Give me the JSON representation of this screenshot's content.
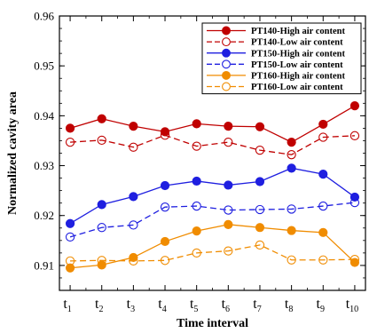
{
  "chart_data": {
    "type": "line",
    "xlabel": "Time interval",
    "ylabel": "Normalized cavity area",
    "ylim": [
      0.905,
      0.96
    ],
    "yticks": [
      "0.91",
      "0.92",
      "0.93",
      "0.94",
      "0.95",
      "0.96"
    ],
    "categories": [
      {
        "base": "t",
        "sub": "1"
      },
      {
        "base": "t",
        "sub": "2"
      },
      {
        "base": "t",
        "sub": "3"
      },
      {
        "base": "t",
        "sub": "4"
      },
      {
        "base": "t",
        "sub": "5"
      },
      {
        "base": "t",
        "sub": "6"
      },
      {
        "base": "t",
        "sub": "7"
      },
      {
        "base": "t",
        "sub": "8"
      },
      {
        "base": "t",
        "sub": "9"
      },
      {
        "base": "t",
        "sub": "10"
      }
    ],
    "legend_position": "top-right",
    "grid": false,
    "series": [
      {
        "name": "PT140-High air content",
        "color": "#c00000",
        "line": "solid",
        "marker": "filled",
        "values": [
          0.9375,
          0.9394,
          0.9379,
          0.9368,
          0.9384,
          0.9379,
          0.9378,
          0.9347,
          0.9383,
          0.942
        ]
      },
      {
        "name": "PT140-Low air content",
        "color": "#c00000",
        "line": "dashed",
        "marker": "open",
        "values": [
          0.9347,
          0.9351,
          0.9337,
          0.9361,
          0.9339,
          0.9347,
          0.9331,
          0.9322,
          0.9357,
          0.936
        ]
      },
      {
        "name": "PT150-High air content",
        "color": "#1f1fe0",
        "line": "solid",
        "marker": "filled",
        "values": [
          0.9184,
          0.9222,
          0.9238,
          0.926,
          0.9269,
          0.9261,
          0.9268,
          0.9295,
          0.9283,
          0.9237
        ]
      },
      {
        "name": "PT150-Low air content",
        "color": "#1f1fe0",
        "line": "dashed",
        "marker": "open",
        "values": [
          0.9157,
          0.9176,
          0.9181,
          0.9217,
          0.9219,
          0.9211,
          0.9212,
          0.9213,
          0.9219,
          0.9226
        ]
      },
      {
        "name": "PT160-High air content",
        "color": "#f08c00",
        "line": "solid",
        "marker": "filled",
        "values": [
          0.9095,
          0.9101,
          0.9116,
          0.9148,
          0.9169,
          0.9182,
          0.9176,
          0.917,
          0.9166,
          0.9106
        ]
      },
      {
        "name": "PT160-Low air content",
        "color": "#f08c00",
        "line": "dashed",
        "marker": "open",
        "values": [
          0.9109,
          0.911,
          0.9109,
          0.911,
          0.9125,
          0.9129,
          0.9141,
          0.9111,
          0.9111,
          0.9112
        ]
      }
    ]
  }
}
